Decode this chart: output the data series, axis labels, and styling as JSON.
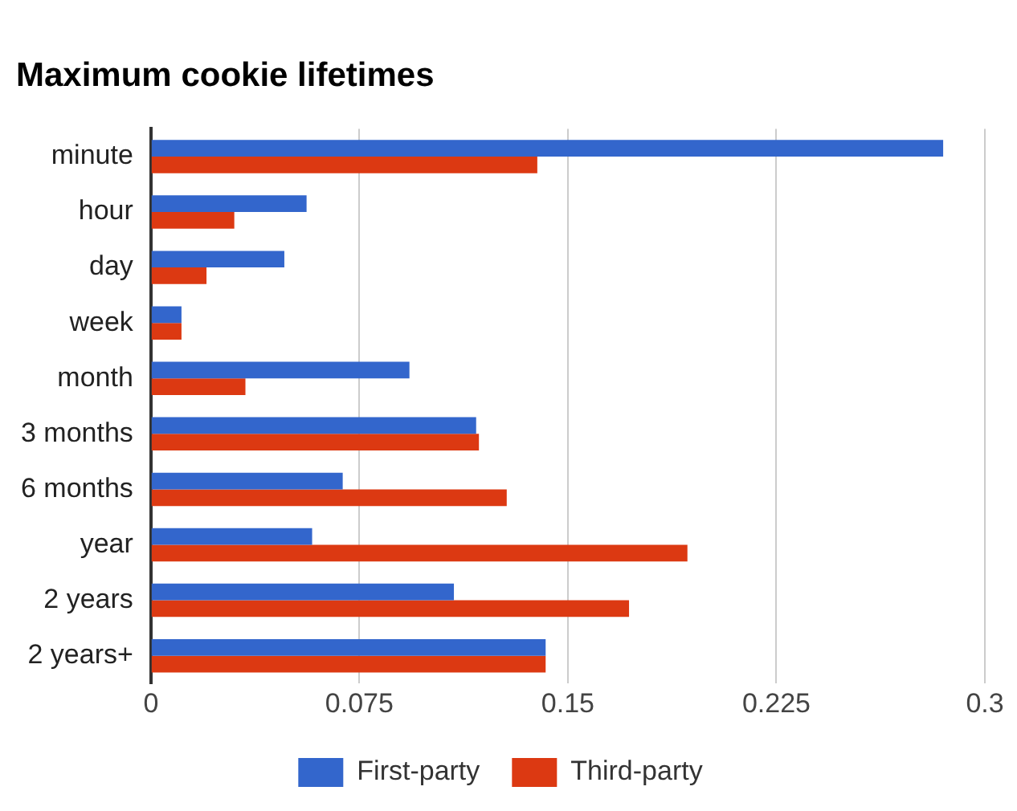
{
  "chart_data": {
    "type": "bar",
    "orientation": "horizontal",
    "title": "Maximum cookie lifetimes",
    "categories": [
      "minute",
      "hour",
      "day",
      "week",
      "month",
      "3 months",
      "6 months",
      "year",
      "2 years",
      "2 years+"
    ],
    "series": [
      {
        "name": "First-party",
        "color": "#3366cc",
        "values": [
          0.285,
          0.056,
          0.048,
          0.011,
          0.093,
          0.117,
          0.069,
          0.058,
          0.109,
          0.142
        ]
      },
      {
        "name": "Third-party",
        "color": "#dc3912",
        "values": [
          0.139,
          0.03,
          0.02,
          0.011,
          0.034,
          0.118,
          0.128,
          0.193,
          0.172,
          0.142
        ]
      }
    ],
    "xlim": [
      0,
      0.3
    ],
    "xticks": [
      0,
      0.075,
      0.15,
      0.225,
      0.3
    ],
    "grid": "x",
    "legend": "bottom"
  }
}
